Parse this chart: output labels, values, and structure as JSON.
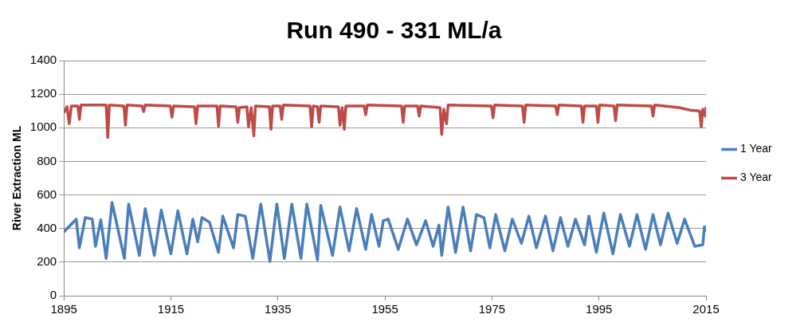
{
  "chart_data": {
    "type": "line",
    "title": "Run 490 - 331 ML/a",
    "ylabel": "River Extraction ML",
    "xlim": [
      1895,
      2015
    ],
    "xticks": [
      1895,
      1915,
      1935,
      1955,
      1975,
      1995,
      2015
    ],
    "ylim": [
      0,
      1400
    ],
    "yticks": [
      0,
      200,
      400,
      600,
      800,
      1000,
      1200,
      1400
    ],
    "grid": "y",
    "legend": "right",
    "marker": "none",
    "line_style": "solid",
    "series": [
      {
        "name": "1 Year",
        "color": "#4a7ebb",
        "x": [
          1895,
          1897.3,
          1897.9,
          1899.0,
          1900.3,
          1900.9,
          1901.9,
          1902.9,
          1904.0,
          1906.3,
          1907.1,
          1909.1,
          1910.2,
          1911.9,
          1913.2,
          1915.0,
          1916.3,
          1918.0,
          1919.1,
          1920.0,
          1920.8,
          1922.2,
          1923.9,
          1924.7,
          1926.7,
          1927.5,
          1928.9,
          1930.3,
          1931.8,
          1933.5,
          1934.8,
          1936.2,
          1937.6,
          1939.3,
          1940.4,
          1942.4,
          1943.0,
          1945.2,
          1946.6,
          1948.3,
          1949.7,
          1951.4,
          1952.5,
          1953.9,
          1954.7,
          1955.6,
          1957.5,
          1959.2,
          1960.9,
          1962.6,
          1964.0,
          1965.1,
          1965.6,
          1966.8,
          1968.2,
          1969.6,
          1971.0,
          1972.1,
          1973.5,
          1974.6,
          1975.7,
          1977.4,
          1978.8,
          1980.5,
          1981.9,
          1983.3,
          1985.0,
          1986.4,
          1987.8,
          1989.2,
          1990.6,
          1992.3,
          1993.1,
          1994.5,
          1995.9,
          1997.6,
          1999.0,
          2000.7,
          2002.1,
          2003.7,
          2005.1,
          2006.5,
          2007.9,
          2009.6,
          2011.0,
          2012.9,
          2014.4,
          2014.7,
          2015
        ],
        "values": [
          380,
          456,
          285,
          465,
          456,
          294,
          452,
          222,
          555,
          222,
          546,
          240,
          519,
          240,
          510,
          249,
          505,
          249,
          456,
          321,
          465,
          438,
          258,
          474,
          285,
          483,
          474,
          222,
          546,
          204,
          546,
          222,
          546,
          222,
          546,
          213,
          537,
          240,
          528,
          267,
          519,
          276,
          483,
          294,
          447,
          456,
          276,
          456,
          303,
          447,
          294,
          420,
          240,
          528,
          258,
          528,
          267,
          483,
          465,
          285,
          483,
          267,
          456,
          312,
          474,
          285,
          474,
          267,
          465,
          294,
          456,
          303,
          474,
          258,
          492,
          249,
          483,
          294,
          483,
          276,
          483,
          303,
          492,
          312,
          456,
          294,
          303,
          411,
          380
        ]
      },
      {
        "name": "3 Year",
        "color": "#be4b48",
        "x": [
          1895,
          1895.6,
          1896.0,
          1896.4,
          1897.6,
          1897.9,
          1898.2,
          1902.9,
          1903.2,
          1903.5,
          1906.2,
          1906.5,
          1906.8,
          1909.6,
          1909.9,
          1910.2,
          1914.9,
          1915.2,
          1915.5,
          1919.4,
          1919.7,
          1920.0,
          1923.6,
          1923.9,
          1924.2,
          1927.2,
          1927.5,
          1927.8,
          1929.2,
          1929.5,
          1930.0,
          1930.5,
          1930.8,
          1933.4,
          1933.7,
          1934.0,
          1935.4,
          1935.7,
          1936.0,
          1941.0,
          1941.3,
          1941.6,
          1942.4,
          1942.7,
          1943.0,
          1946.3,
          1946.6,
          1947.0,
          1947.4,
          1947.7,
          1951.1,
          1951.4,
          1951.7,
          1958.1,
          1958.4,
          1958.7,
          1961.1,
          1961.4,
          1961.7,
          1965.3,
          1965.6,
          1966.0,
          1966.5,
          1966.8,
          1974.9,
          1975.2,
          1975.5,
          1980.7,
          1981.0,
          1981.3,
          1986.9,
          1987.2,
          1987.5,
          1991.7,
          1992.0,
          1992.3,
          1994.5,
          1994.8,
          1995.1,
          1997.8,
          1998.1,
          1998.4,
          2004.8,
          2005.1,
          2005.4,
          2010,
          2012,
          2013.8,
          2014.1,
          2014.4,
          2014.9,
          2015
        ],
        "values": [
          1090,
          1125,
          1024,
          1130,
          1130,
          1050,
          1135,
          1135,
          942,
          1135,
          1130,
          1015,
          1135,
          1130,
          1096,
          1135,
          1130,
          1063,
          1130,
          1125,
          1024,
          1130,
          1130,
          1009,
          1130,
          1125,
          1032,
          1120,
          1125,
          1006,
          1120,
          952,
          1130,
          1125,
          991,
          1130,
          1130,
          1050,
          1135,
          1130,
          1006,
          1130,
          1125,
          1032,
          1130,
          1125,
          1015,
          1120,
          991,
          1130,
          1130,
          1078,
          1135,
          1130,
          1032,
          1130,
          1130,
          1069,
          1130,
          1120,
          960,
          1110,
          1024,
          1135,
          1130,
          1060,
          1135,
          1130,
          1032,
          1135,
          1130,
          1078,
          1135,
          1130,
          1032,
          1130,
          1130,
          1032,
          1135,
          1130,
          1042,
          1135,
          1130,
          1069,
          1135,
          1120,
          1105,
          1100,
          1006,
          1110,
          1069,
          1125
        ]
      }
    ]
  }
}
